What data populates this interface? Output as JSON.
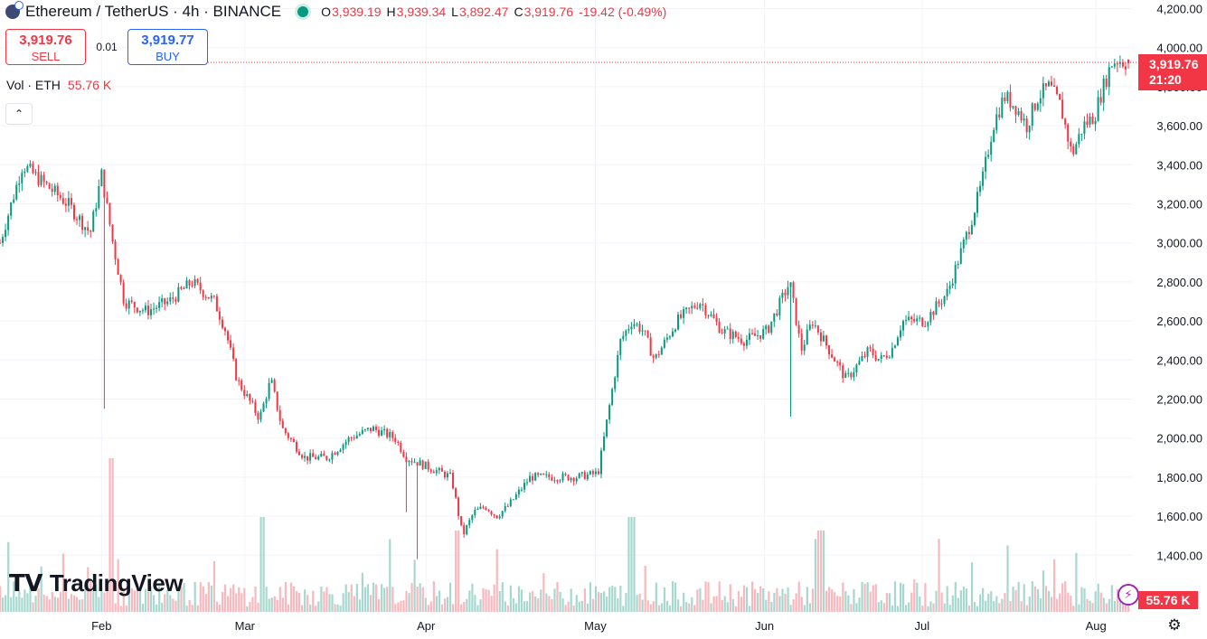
{
  "header": {
    "symbol": "Ethereum / TetherUS · 4h · BINANCE",
    "ohlc": [
      {
        "k": "O",
        "v": "3,939.19"
      },
      {
        "k": "H",
        "v": "3,939.34"
      },
      {
        "k": "L",
        "v": "3,892.47"
      },
      {
        "k": "C",
        "v": "3,919.76"
      },
      {
        "k": "",
        "v": "-19.42 (-0.49%)"
      }
    ]
  },
  "trade": {
    "sell_price": "3,919.76",
    "sell_label": "SELL",
    "spread": "0.01",
    "buy_price": "3,919.77",
    "buy_label": "BUY"
  },
  "volume": {
    "label": "Vol · ETH",
    "value": "55.76 K"
  },
  "logo": "TradingView",
  "price_tag": {
    "price": "3,919.76",
    "countdown": "21:20"
  },
  "volume_tag": "55.76 K",
  "icons": {
    "collapse": "chevron-up-icon",
    "bolt": "lightning-icon",
    "settings": "gear-icon",
    "symbol": "ethereum-icon"
  },
  "colors": {
    "up": "#089981",
    "down": "#f23645",
    "up_vol": "#a7d8cf",
    "down_vol": "#f7b8be",
    "grid": "#f0f3fa"
  },
  "chart_data": {
    "type": "line",
    "title": "Ethereum / TetherUS · 4h · BINANCE",
    "xlabel": "",
    "ylabel": "",
    "ylim": [
      1200,
      4250
    ],
    "y_ticks": [
      "1,400.00",
      "1,600.00",
      "1,800.00",
      "2,000.00",
      "2,200.00",
      "2,400.00",
      "2,600.00",
      "2,800.00",
      "3,000.00",
      "3,200.00",
      "3,400.00",
      "3,600.00",
      "3,800.00",
      "4,000.00",
      "4,200.00"
    ],
    "x_ticks": [
      {
        "label": "Feb",
        "pos": 0.0876
      },
      {
        "label": "Mar",
        "pos": 0.2146
      },
      {
        "label": "Apr",
        "pos": 0.3752
      },
      {
        "label": "May",
        "pos": 0.5252
      },
      {
        "label": "Jun",
        "pos": 0.6752
      },
      {
        "label": "Jul",
        "pos": 0.8148
      },
      {
        "label": "Aug",
        "pos": 0.9689
      }
    ],
    "series": [
      {
        "name": "Close",
        "x": [
          0,
          0.02,
          0.04,
          0.06,
          0.08,
          0.09,
          0.1,
          0.11,
          0.13,
          0.15,
          0.17,
          0.19,
          0.2,
          0.21,
          0.22,
          0.23,
          0.24,
          0.25,
          0.27,
          0.29,
          0.31,
          0.33,
          0.35,
          0.36,
          0.38,
          0.4,
          0.41,
          0.42,
          0.43,
          0.44,
          0.45,
          0.47,
          0.49,
          0.51,
          0.53,
          0.55,
          0.56,
          0.57,
          0.58,
          0.6,
          0.62,
          0.64,
          0.66,
          0.68,
          0.7,
          0.71,
          0.72,
          0.73,
          0.75,
          0.77,
          0.78,
          0.79,
          0.8,
          0.82,
          0.84,
          0.86,
          0.87,
          0.88,
          0.89,
          0.9,
          0.91,
          0.92,
          0.93,
          0.94,
          0.95,
          0.96,
          0.97,
          0.975,
          0.985,
          0.99,
          1.0
        ],
        "values": [
          3000,
          3400,
          3300,
          3200,
          3050,
          3350,
          3000,
          2700,
          2650,
          2700,
          2800,
          2700,
          2550,
          2300,
          2200,
          2100,
          2300,
          2050,
          1900,
          1900,
          2000,
          2050,
          2000,
          1900,
          1850,
          1800,
          1500,
          1620,
          1650,
          1600,
          1650,
          1800,
          1800,
          1800,
          1820,
          2500,
          2600,
          2550,
          2400,
          2600,
          2700,
          2550,
          2500,
          2550,
          2800,
          2450,
          2600,
          2500,
          2300,
          2450,
          2400,
          2450,
          2600,
          2600,
          2750,
          3100,
          3300,
          3600,
          3750,
          3700,
          3600,
          3750,
          3800,
          3700,
          3450,
          3600,
          3650,
          3750,
          3920,
          3939,
          3920
        ],
        "low_spikes": [
          [
            0.092,
            2150
          ],
          [
            0.36,
            1620
          ],
          [
            0.37,
            1380
          ],
          [
            0.7,
            2110
          ]
        ]
      }
    ]
  }
}
